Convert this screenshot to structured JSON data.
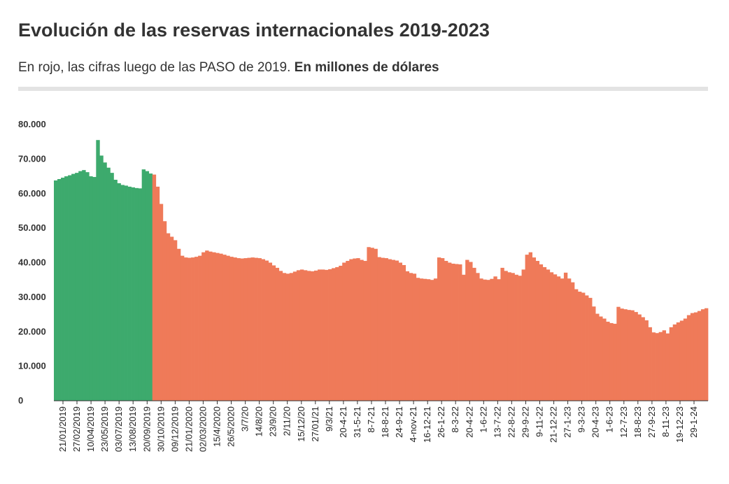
{
  "title": "Evolución de las reservas internacionales 2019-2023",
  "subtitle_plain": "En rojo, las cifras luego de las PASO de 2019. ",
  "subtitle_bold": "En millones de dólares",
  "colors": {
    "before_paso": "#3daa6d",
    "after_paso": "#ef7a59",
    "axis": "#333333",
    "rule": "#e3e3e3"
  },
  "chart_data": {
    "type": "area",
    "title": "Evolución de las reservas internacionales 2019-2023",
    "subtitle": "En rojo, las cifras luego de las PASO de 2019. En millones de dólares",
    "xlabel": "",
    "ylabel": "",
    "ylim": [
      0,
      80000
    ],
    "yticks": [
      0,
      10000,
      20000,
      30000,
      40000,
      50000,
      60000,
      70000,
      80000
    ],
    "ytick_labels": [
      "0",
      "10.000",
      "20.000",
      "30.000",
      "40.000",
      "50.000",
      "60.000",
      "70.000",
      "80.000"
    ],
    "xtick_labels": [
      "21/01/2019",
      "27/02/2019",
      "10/04/2019",
      "23/05/2019",
      "03/07/2019",
      "13/08/2019",
      "20/09/2019",
      "30/10/2019",
      "09/12/2019",
      "21/01/2020",
      "02/03/2020",
      "15/4/2020",
      "26/5/2020",
      "3/7/20",
      "14/8/20",
      "23/9/20",
      "2/11/20",
      "15/12/20",
      "27/01/21",
      "9/3/21",
      "20-4-21",
      "31-5-21",
      "8-7-21",
      "18-8-21",
      "24-9-21",
      "4-nov-21",
      "16-12-21",
      "26-1-22",
      "8-3-22",
      "20-4-22",
      "1-6-22",
      "13-7-22",
      "22-8-22",
      "29-9-22",
      "9-11-22",
      "21-12-22",
      "27-1-23",
      "9-3-23",
      "20-4-23",
      "1-6-23",
      "12-7-23",
      "18-8-23",
      "27-9-23",
      "8-11-23",
      "19-12-23",
      "29-1-24"
    ],
    "grid": false,
    "legend": "none",
    "series": [
      {
        "color": "#3daa6d",
        "values": [
          63800,
          64200,
          64600,
          65000,
          65300,
          65700,
          66000,
          66500,
          66800,
          66200,
          65000,
          64800,
          75500,
          71000,
          69000,
          67500,
          66000,
          64000,
          63000,
          62500,
          62300,
          62000,
          61800,
          61600,
          61500,
          67000,
          66500,
          65800
        ]
      },
      {
        "color": "#ef7a59",
        "values": [
          65500,
          62000,
          57000,
          52000,
          48500,
          47500,
          46500,
          44000,
          42000,
          41500,
          41400,
          41500,
          41700,
          42000,
          43000,
          43500,
          43200,
          43000,
          42800,
          42600,
          42300,
          42000,
          41700,
          41500,
          41300,
          41200,
          41300,
          41400,
          41500,
          41400,
          41300,
          41000,
          40600,
          40000,
          39200,
          38500,
          37600,
          37000,
          36800,
          37000,
          37400,
          37800,
          38000,
          37800,
          37600,
          37500,
          37700,
          38000,
          38000,
          37900,
          38100,
          38400,
          38700,
          39100,
          40000,
          40500,
          41000,
          41200,
          41300,
          40800,
          40500,
          44500,
          44300,
          44000,
          41600,
          41400,
          41300,
          41000,
          40800,
          40600,
          40000,
          39300,
          37500,
          37000,
          36800,
          35600,
          35400,
          35300,
          35200,
          35000,
          35400,
          41500,
          41300,
          40500,
          40000,
          39700,
          39600,
          39500,
          36500,
          40800,
          40200,
          38500,
          37000,
          35400,
          35100,
          35000,
          35300,
          36000,
          35200,
          38500,
          37600,
          37200,
          37000,
          36500,
          36200,
          38000,
          42300,
          43000,
          41500,
          40500,
          39500,
          38700,
          38000,
          37200,
          36600,
          36000,
          35400,
          37100,
          35400,
          34300,
          32300,
          31600,
          31300,
          30500,
          29800,
          27300,
          25200,
          24400,
          23800,
          22900,
          22500,
          22300,
          27200,
          26700,
          26500,
          26300,
          26200,
          25700,
          25000,
          24200,
          23300,
          21300,
          19800,
          19600,
          19900,
          20400,
          19500,
          21300,
          22100,
          22700,
          23200,
          23800,
          24800,
          25400,
          25600,
          26000,
          26500,
          26800
        ]
      }
    ]
  }
}
